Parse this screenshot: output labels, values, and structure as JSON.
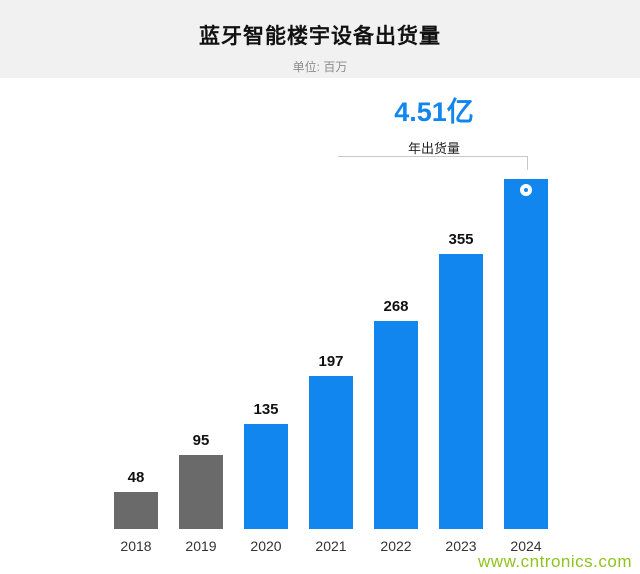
{
  "header": {
    "title": "蓝牙智能楼宇设备出货量",
    "subtitle": "单位: 百万"
  },
  "annotation": {
    "value": "4.51亿",
    "caption": "年出货量"
  },
  "watermark": "www.cntronics.com",
  "colors": {
    "accent_blue": "#1186ee",
    "bar_gray": "#6a6a6a",
    "watermark_green": "#8fc31f",
    "header_band": "#f1f1f2"
  },
  "chart_data": {
    "type": "bar",
    "title": "蓝牙智能楼宇设备出货量",
    "unit_label": "单位: 百万",
    "categories": [
      "2018",
      "2019",
      "2020",
      "2021",
      "2022",
      "2023",
      "2024"
    ],
    "values": [
      48,
      95,
      135,
      197,
      268,
      355,
      451
    ],
    "bar_labels": [
      "48",
      "95",
      "135",
      "197",
      "268",
      "355",
      ""
    ],
    "bar_colors": [
      "#6a6a6a",
      "#6a6a6a",
      "#1186ee",
      "#1186ee",
      "#1186ee",
      "#1186ee",
      "#1186ee"
    ],
    "ylim": [
      0,
      460
    ],
    "grid": false,
    "legend": false,
    "highlight": {
      "category": "2024",
      "label": "4.51亿",
      "caption": "年出货量",
      "marker": "blue-dot-with-white-ring"
    }
  }
}
